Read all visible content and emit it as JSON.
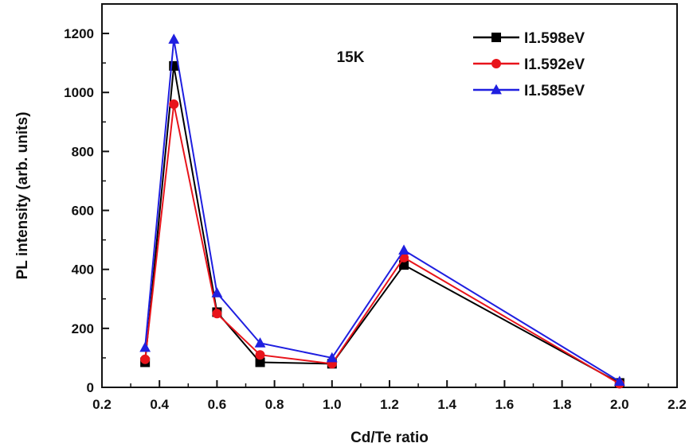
{
  "chart_data": {
    "type": "line",
    "title": "",
    "annotation": "15K",
    "xlabel": "Cd/Te ratio",
    "ylabel": "PL intensity (arb. units)",
    "xlim": [
      0.2,
      2.2
    ],
    "ylim": [
      0,
      1300
    ],
    "x_ticks": [
      0.2,
      0.4,
      0.6,
      0.8,
      1.0,
      1.2,
      1.4,
      1.6,
      1.8,
      2.0,
      2.2
    ],
    "x_tick_labels": [
      "0.2",
      "0.4",
      "0.6",
      "0.8",
      "1.0",
      "1.2",
      "1.4",
      "1.6",
      "1.8",
      "2.0",
      "2.2"
    ],
    "y_ticks": [
      0,
      200,
      400,
      600,
      800,
      1000,
      1200
    ],
    "y_tick_labels": [
      "0",
      "200",
      "400",
      "600",
      "800",
      "1000",
      "1200"
    ],
    "grid": false,
    "legend_position": "top-right",
    "x": [
      0.35,
      0.45,
      0.6,
      0.75,
      1.0,
      1.25,
      2.0
    ],
    "series": [
      {
        "name": "I1.598eV",
        "color": "#000000",
        "marker": "square",
        "values": [
          85,
          1090,
          255,
          85,
          80,
          415,
          15
        ]
      },
      {
        "name": "I1.592eV",
        "color": "#e8141b",
        "marker": "circle",
        "values": [
          95,
          960,
          250,
          110,
          80,
          440,
          12
        ]
      },
      {
        "name": "I1.585eV",
        "color": "#1f1fe0",
        "marker": "triangle",
        "values": [
          135,
          1180,
          320,
          150,
          100,
          465,
          20
        ]
      }
    ]
  }
}
